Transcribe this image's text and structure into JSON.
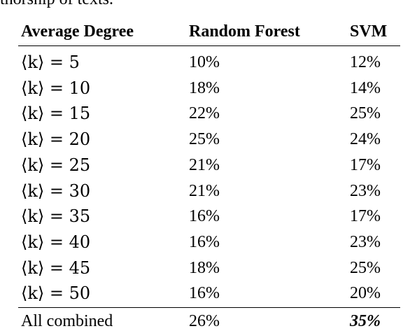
{
  "caption": "thorship of texts.",
  "table": {
    "columns": [
      "Average Degree",
      "Random Forest",
      "SVM"
    ],
    "rows": [
      [
        "⟨k⟩ = 5",
        "10%",
        "12%"
      ],
      [
        "⟨k⟩ = 10",
        "18%",
        "14%"
      ],
      [
        "⟨k⟩ = 15",
        "22%",
        "25%"
      ],
      [
        "⟨k⟩ = 20",
        "25%",
        "24%"
      ],
      [
        "⟨k⟩ = 25",
        "21%",
        "17%"
      ],
      [
        "⟨k⟩ = 30",
        "21%",
        "23%"
      ],
      [
        "⟨k⟩ = 35",
        "16%",
        "17%"
      ],
      [
        "⟨k⟩ = 40",
        "16%",
        "23%"
      ],
      [
        "⟨k⟩ = 45",
        "18%",
        "25%"
      ],
      [
        "⟨k⟩ = 50",
        "16%",
        "20%"
      ]
    ],
    "footer": [
      "All combined",
      "26%",
      "35%"
    ]
  }
}
